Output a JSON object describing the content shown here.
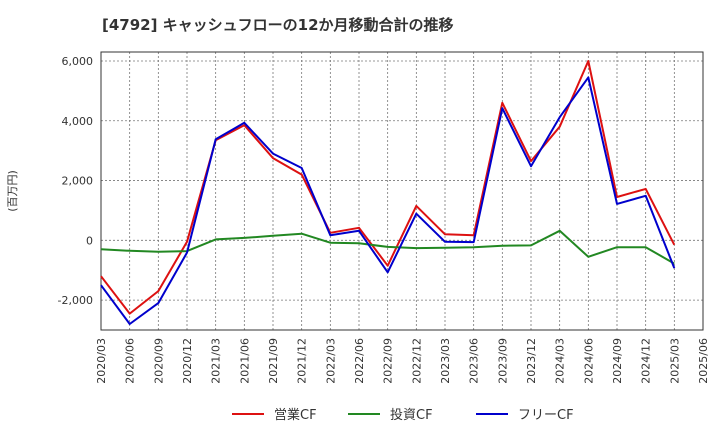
{
  "chart_data": {
    "type": "line",
    "title": "[4792]  キャッシュフローの12か月移動合計の推移",
    "ylabel": "(百万円)",
    "xlabel": "",
    "ylim": [
      -3000,
      6300
    ],
    "yticks": [
      -2000,
      0,
      2000,
      4000,
      6000
    ],
    "ytick_labels": [
      "-2,000",
      "0",
      "2,000",
      "4,000",
      "6,000"
    ],
    "x": [
      "2020/03",
      "2020/06",
      "2020/09",
      "2020/12",
      "2021/03",
      "2021/06",
      "2021/09",
      "2021/12",
      "2022/03",
      "2022/06",
      "2022/09",
      "2022/12",
      "2023/03",
      "2023/06",
      "2023/09",
      "2023/12",
      "2024/03",
      "2024/06",
      "2024/09",
      "2024/12",
      "2025/03",
      "2025/06"
    ],
    "grid": true,
    "legend_position": "bottom-center",
    "series": [
      {
        "name": "営業CF",
        "color": "#dd1111",
        "values": [
          -1200,
          -2450,
          -1700,
          -50,
          3350,
          3850,
          2750,
          2200,
          250,
          420,
          -850,
          1150,
          200,
          170,
          4600,
          2650,
          3800,
          6000,
          1450,
          1720,
          -150,
          null
        ]
      },
      {
        "name": "投資CF",
        "color": "#228822",
        "values": [
          -300,
          -350,
          -380,
          -360,
          30,
          80,
          150,
          220,
          -80,
          -100,
          -220,
          -260,
          -250,
          -230,
          -180,
          -170,
          320,
          -550,
          -230,
          -230,
          -780,
          null
        ]
      },
      {
        "name": "フリーCF",
        "color": "#0000cc",
        "values": [
          -1500,
          -2800,
          -2100,
          -410,
          3380,
          3930,
          2900,
          2420,
          170,
          320,
          -1070,
          890,
          -50,
          -60,
          4420,
          2480,
          4120,
          5450,
          1220,
          1490,
          -930,
          null
        ]
      }
    ]
  }
}
